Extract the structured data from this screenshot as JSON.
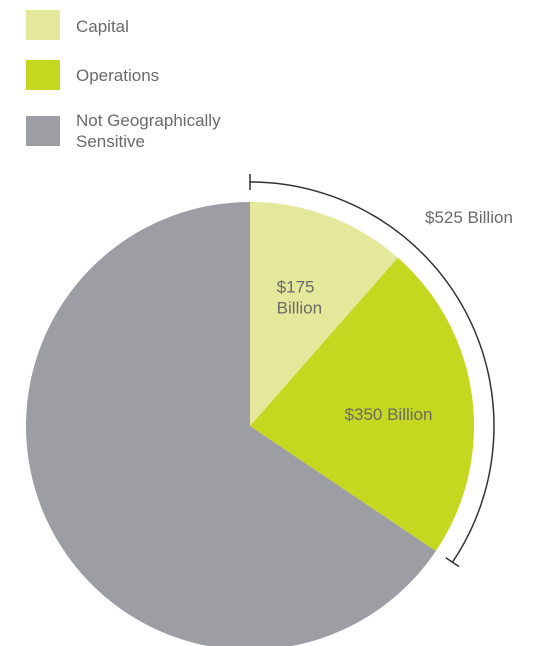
{
  "chart_data": {
    "type": "pie",
    "categories": [
      "Capital",
      "Operations",
      "Not Geographically Sensitive"
    ],
    "values": [
      175,
      350,
      1000
    ],
    "colors": [
      "#e3e89a",
      "#c3d81e",
      "#9c9ea3"
    ],
    "slice_labels": [
      "$175\nBillion",
      "$350 Billion",
      ""
    ],
    "bracket_label": "$525 Billion",
    "legend_position": "top-left",
    "title": ""
  },
  "legend": {
    "items": [
      {
        "label": "Capital",
        "color": "#e3e89a"
      },
      {
        "label": "Operations",
        "color": "#c3d81e"
      },
      {
        "label": "Not Geographically Sensitive",
        "color": "#9c9ea3"
      }
    ]
  }
}
